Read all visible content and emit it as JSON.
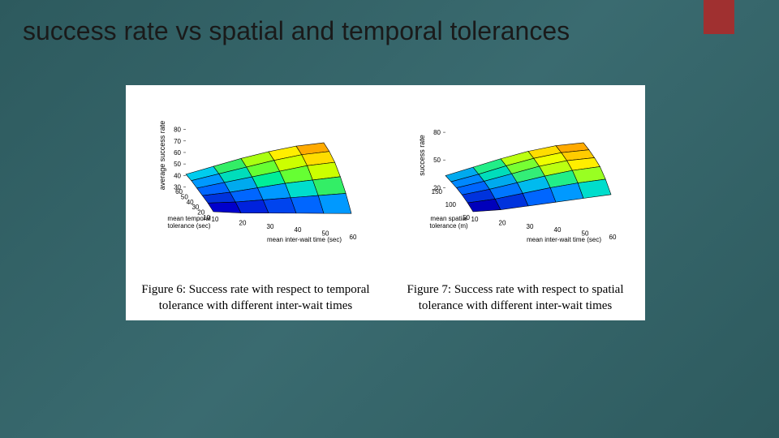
{
  "slide": {
    "title": "success rate vs spatial and temporal tolerances",
    "background_gradient": [
      "#2d5a5e",
      "#3a6b70",
      "#2d5a5e"
    ],
    "accent_color": "#a03030"
  },
  "figure_left": {
    "type": "surface3d",
    "z_label": "average success rate",
    "z_ticks": [
      30,
      40,
      50,
      60,
      70,
      80
    ],
    "x_label": "mean inter-wait time (sec)",
    "x_ticks": [
      10,
      20,
      30,
      40,
      50,
      60
    ],
    "y_label": "mean temporal tolerance (sec)",
    "y_ticks": [
      10,
      20,
      30,
      40,
      50,
      60
    ],
    "z_grid": [
      [
        31,
        33,
        36,
        39,
        42,
        45
      ],
      [
        34,
        38,
        43,
        48,
        53,
        58
      ],
      [
        36,
        42,
        49,
        56,
        62,
        68
      ],
      [
        38,
        46,
        54,
        62,
        70,
        76
      ],
      [
        40,
        49,
        58,
        67,
        75,
        81
      ],
      [
        41,
        51,
        61,
        70,
        78,
        84
      ]
    ],
    "colors_grid": [
      [
        "#0000cc",
        "#0022dd",
        "#0044ee",
        "#0066ff",
        "#0099ff",
        "#00ccee"
      ],
      [
        "#0033dd",
        "#0066ff",
        "#0099ff",
        "#00ddcc",
        "#33ee66",
        "#88ff33"
      ],
      [
        "#0066ff",
        "#00aaee",
        "#00ee99",
        "#66ff33",
        "#ccff00",
        "#ffee00"
      ],
      [
        "#0099ff",
        "#00ddbb",
        "#66ff33",
        "#ccff00",
        "#ffdd00",
        "#ffaa00"
      ],
      [
        "#00ccee",
        "#33ee66",
        "#aaff11",
        "#ffee00",
        "#ffaa00",
        "#ff6600"
      ],
      [
        "#00eecc",
        "#77ff33",
        "#ddff00",
        "#ffcc00",
        "#ff8800",
        "#ee3300"
      ]
    ],
    "caption": "Figure 6: Success rate with respect to temporal tolerance with different inter-wait times",
    "caption_fontsize": 15,
    "grid_line_color": "#000000",
    "background_color": "#ffffff"
  },
  "figure_right": {
    "type": "surface3d",
    "z_label": "success rate",
    "z_ticks": [
      20,
      50,
      80
    ],
    "x_label": "mean inter-wait time (sec)",
    "x_ticks": [
      10,
      20,
      30,
      40,
      50,
      60
    ],
    "y_label": "mean spatial tolerance (m)",
    "y_ticks": [
      50,
      100,
      150
    ],
    "z_grid": [
      [
        22,
        28,
        36,
        44,
        52,
        60
      ],
      [
        26,
        34,
        44,
        54,
        63,
        71
      ],
      [
        29,
        39,
        50,
        61,
        71,
        79
      ],
      [
        31,
        42,
        54,
        66,
        76,
        83
      ],
      [
        32,
        44,
        57,
        69,
        79,
        86
      ],
      [
        33,
        46,
        59,
        71,
        81,
        88
      ]
    ],
    "colors_grid": [
      [
        "#0000bb",
        "#0033dd",
        "#0066ff",
        "#0099ff",
        "#00ddcc",
        "#33ee77"
      ],
      [
        "#0033dd",
        "#0077ff",
        "#00bbee",
        "#22ee88",
        "#99ff22",
        "#eeff00"
      ],
      [
        "#0066ff",
        "#00aaee",
        "#33ee77",
        "#bbff11",
        "#ffee00",
        "#ffbb00"
      ],
      [
        "#0088ff",
        "#00ddbb",
        "#77ff33",
        "#eeff00",
        "#ffcc00",
        "#ff8800"
      ],
      [
        "#00aaee",
        "#22ee88",
        "#bbff11",
        "#ffdd00",
        "#ffaa00",
        "#ff5500"
      ],
      [
        "#00ccdd",
        "#55ff55",
        "#ddff00",
        "#ffcc00",
        "#ff8800",
        "#ee2200"
      ]
    ],
    "caption": "Figure 7: Success rate with respect to spatial tolerance with different inter-wait times",
    "caption_fontsize": 15,
    "grid_line_color": "#000000",
    "background_color": "#ffffff"
  }
}
